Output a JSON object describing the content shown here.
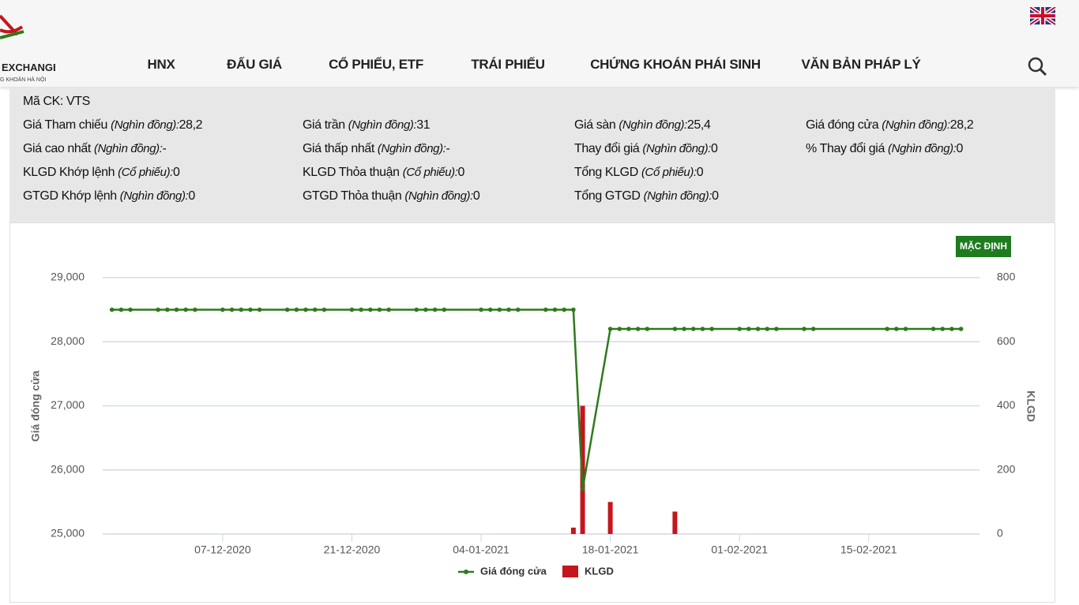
{
  "header": {
    "logo_text": "EXCHANGE",
    "logo_subtext": "G KHOÁN HÀ NỘI",
    "nav": [
      "HNX",
      "ĐẤU GIÁ",
      "CỔ PHIẾU, ETF",
      "TRÁI PHIẾU",
      "CHỨNG KHOÁN PHÁI SINH",
      "VĂN BẢN PHÁP LÝ"
    ]
  },
  "info": {
    "rows": [
      [
        {
          "label": "Mã CK:",
          "value": "VTS"
        }
      ],
      [
        {
          "label": "Giá Tham chiếu",
          "unit": "(Nghìn đồng):",
          "value": "28,2"
        },
        {
          "label": "Giá trần",
          "unit": "(Nghìn đồng):",
          "value": "31"
        },
        {
          "label": "Giá sàn",
          "unit": "(Nghìn đồng):",
          "value": "25,4"
        },
        {
          "label": "Giá đóng cửa",
          "unit": "(Nghìn đồng):",
          "value": "28,2"
        }
      ],
      [
        {
          "label": "Giá cao nhất",
          "unit": "(Nghìn đồng):",
          "value": "-"
        },
        {
          "label": "Giá thấp nhất",
          "unit": "(Nghìn đồng):",
          "value": "-"
        },
        {
          "label": "Thay đổi giá",
          "unit": "(Nghìn đồng):",
          "value": "0"
        },
        {
          "label": "% Thay đổi giá",
          "unit": "(Nghìn đồng):",
          "value": "0"
        }
      ],
      [
        {
          "label": "KLGD Khớp lệnh",
          "unit": "(Cổ phiếu):",
          "value": "0"
        },
        {
          "label": "KLGD Thỏa thuận",
          "unit": "(Cổ phiếu):",
          "value": "0"
        },
        {
          "label": "Tổng KLGD",
          "unit": "(Cổ phiếu):",
          "value": "0"
        }
      ],
      [
        {
          "label": "GTGD Khớp lệnh",
          "unit": "(Nghìn đồng):",
          "value": "0"
        },
        {
          "label": "GTGD Thỏa thuận",
          "unit": "(Nghìn đồng):",
          "value": "0"
        },
        {
          "label": "Tổng GTGD",
          "unit": "(Nghìn đồng):",
          "value": "0"
        }
      ]
    ]
  },
  "button": "MẶC ĐỊNH",
  "chart_data": {
    "type": "combo",
    "x": [
      "2020-11-25",
      "2020-11-26",
      "2020-11-27",
      "2020-11-30",
      "2020-12-01",
      "2020-12-02",
      "2020-12-03",
      "2020-12-04",
      "2020-12-07",
      "2020-12-08",
      "2020-12-09",
      "2020-12-10",
      "2020-12-11",
      "2020-12-14",
      "2020-12-15",
      "2020-12-16",
      "2020-12-17",
      "2020-12-18",
      "2020-12-21",
      "2020-12-22",
      "2020-12-23",
      "2020-12-24",
      "2020-12-25",
      "2020-12-28",
      "2020-12-29",
      "2020-12-30",
      "2020-12-31",
      "2021-01-04",
      "2021-01-05",
      "2021-01-06",
      "2021-01-07",
      "2021-01-08",
      "2021-01-11",
      "2021-01-12",
      "2021-01-13",
      "2021-01-14",
      "2021-01-15",
      "2021-01-18",
      "2021-01-19",
      "2021-01-20",
      "2021-01-21",
      "2021-01-22",
      "2021-01-25",
      "2021-01-26",
      "2021-01-27",
      "2021-01-28",
      "2021-01-29",
      "2021-02-01",
      "2021-02-02",
      "2021-02-03",
      "2021-02-04",
      "2021-02-05",
      "2021-02-08",
      "2021-02-09",
      "2021-02-17",
      "2021-02-18",
      "2021-02-19",
      "2021-02-22",
      "2021-02-23",
      "2021-02-24",
      "2021-02-25"
    ],
    "series": [
      {
        "name": "Giá đóng cửa",
        "type": "line",
        "color": "#2e7a1c",
        "values": [
          28500,
          28500,
          28500,
          28500,
          28500,
          28500,
          28500,
          28500,
          28500,
          28500,
          28500,
          28500,
          28500,
          28500,
          28500,
          28500,
          28500,
          28500,
          28500,
          28500,
          28500,
          28500,
          28500,
          28500,
          28500,
          28500,
          28500,
          28500,
          28500,
          28500,
          28500,
          28500,
          28500,
          28500,
          28500,
          28500,
          25700,
          28200,
          28200,
          28200,
          28200,
          28200,
          28200,
          28200,
          28200,
          28200,
          28200,
          28200,
          28200,
          28200,
          28200,
          28200,
          28200,
          28200,
          28200,
          28200,
          28200,
          28200,
          28200,
          28200,
          28200
        ]
      },
      {
        "name": "KLGD",
        "type": "bar",
        "axis": "y2",
        "color": "#c4161c",
        "x": [
          "2021-01-14",
          "2021-01-15",
          "2021-01-18",
          "2021-01-25"
        ],
        "values": [
          20,
          400,
          100,
          70
        ]
      }
    ],
    "xlim": [
      "2020-11-24",
      "2021-02-27"
    ],
    "xticks": [
      {
        "value": "2020-12-07",
        "label": "07-12-2020"
      },
      {
        "value": "2020-12-21",
        "label": "21-12-2020"
      },
      {
        "value": "2021-01-04",
        "label": "04-01-2021"
      },
      {
        "value": "2021-01-18",
        "label": "18-01-2021"
      },
      {
        "value": "2021-02-01",
        "label": "01-02-2021"
      },
      {
        "value": "2021-02-15",
        "label": "15-02-2021"
      }
    ],
    "ylim": [
      25000,
      29000
    ],
    "yticks": [
      {
        "value": 25000,
        "label": "25,000"
      },
      {
        "value": 26000,
        "label": "26,000"
      },
      {
        "value": 27000,
        "label": "27,000"
      },
      {
        "value": 28000,
        "label": "28,000"
      },
      {
        "value": 29000,
        "label": "29,000"
      }
    ],
    "y2lim": [
      0,
      800
    ],
    "y2ticks": [
      0,
      200,
      400,
      600,
      800
    ],
    "ylabel": "Giá đóng cửa",
    "y2label": "KLGD",
    "grid": true,
    "legend": "bottom"
  }
}
